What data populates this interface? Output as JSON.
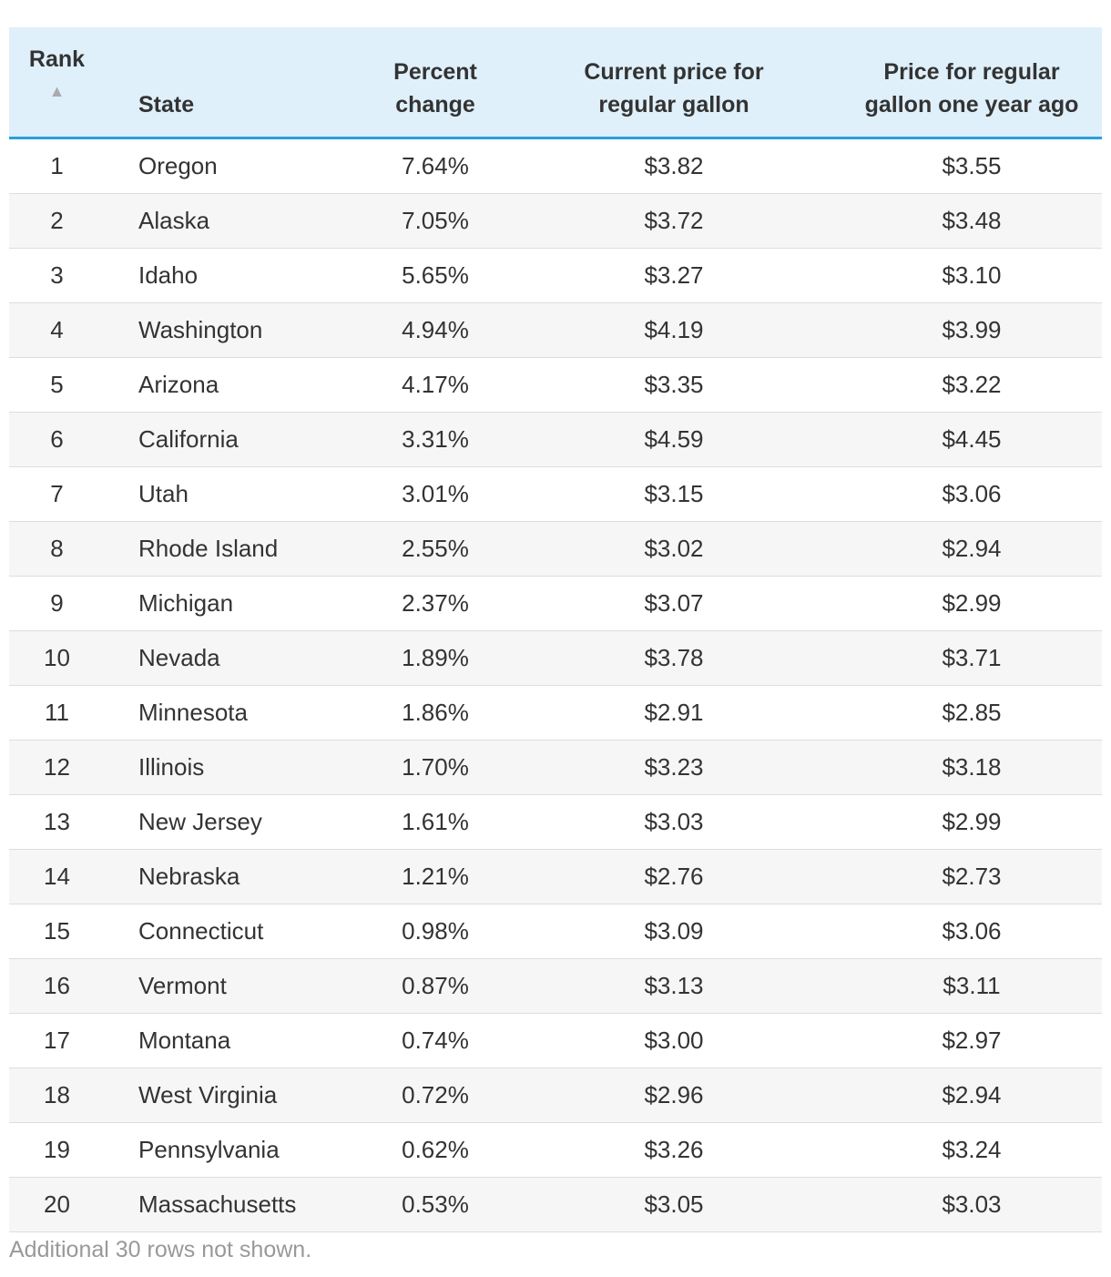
{
  "table": {
    "headers": [
      "Rank",
      "State",
      "Percent change",
      "Current price for regular gallon",
      "Price for regular gallon one year ago"
    ],
    "rows": [
      [
        "1",
        "Oregon",
        "7.64%",
        "$3.82",
        "$3.55"
      ],
      [
        "2",
        "Alaska",
        "7.05%",
        "$3.72",
        "$3.48"
      ],
      [
        "3",
        "Idaho",
        "5.65%",
        "$3.27",
        "$3.10"
      ],
      [
        "4",
        "Washington",
        "4.94%",
        "$4.19",
        "$3.99"
      ],
      [
        "5",
        "Arizona",
        "4.17%",
        "$3.35",
        "$3.22"
      ],
      [
        "6",
        "California",
        "3.31%",
        "$4.59",
        "$4.45"
      ],
      [
        "7",
        "Utah",
        "3.01%",
        "$3.15",
        "$3.06"
      ],
      [
        "8",
        "Rhode Island",
        "2.55%",
        "$3.02",
        "$2.94"
      ],
      [
        "9",
        "Michigan",
        "2.37%",
        "$3.07",
        "$2.99"
      ],
      [
        "10",
        "Nevada",
        "1.89%",
        "$3.78",
        "$3.71"
      ],
      [
        "11",
        "Minnesota",
        "1.86%",
        "$2.91",
        "$2.85"
      ],
      [
        "12",
        "Illinois",
        "1.70%",
        "$3.23",
        "$3.18"
      ],
      [
        "13",
        "New Jersey",
        "1.61%",
        "$3.03",
        "$2.99"
      ],
      [
        "14",
        "Nebraska",
        "1.21%",
        "$2.76",
        "$2.73"
      ],
      [
        "15",
        "Connecticut",
        "0.98%",
        "$3.09",
        "$3.06"
      ],
      [
        "16",
        "Vermont",
        "0.87%",
        "$3.13",
        "$3.11"
      ],
      [
        "17",
        "Montana",
        "0.74%",
        "$3.00",
        "$2.97"
      ],
      [
        "18",
        "West Virginia",
        "0.72%",
        "$2.96",
        "$2.94"
      ],
      [
        "19",
        "Pennsylvania",
        "0.62%",
        "$3.26",
        "$3.24"
      ],
      [
        "20",
        "Massachusetts",
        "0.53%",
        "$3.05",
        "$3.03"
      ]
    ],
    "footnote": "Additional 30 rows not shown."
  }
}
